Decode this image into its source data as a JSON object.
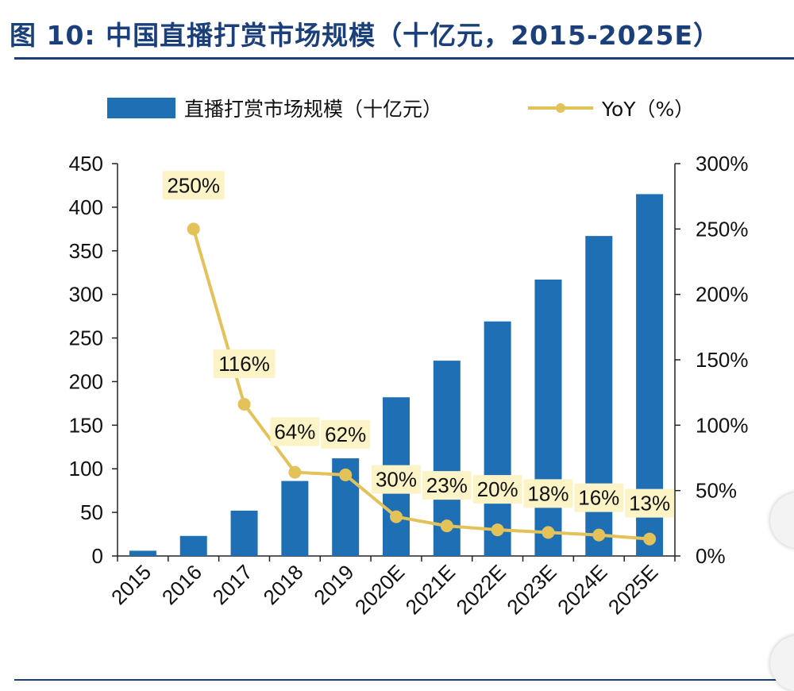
{
  "title": "图  10: 中国直播打赏市场规模（十亿元，2015-2025E）",
  "colors": {
    "bar": "#1f6fb4",
    "line": "#e3c25a",
    "label_bg": "#fcf4c6",
    "title": "#1a3f7a"
  },
  "chart_data": {
    "type": "bar",
    "categories": [
      "2015",
      "2016",
      "2017",
      "2018",
      "2019",
      "2020E",
      "2021E",
      "2022E",
      "2023E",
      "2024E",
      "2025E"
    ],
    "series": [
      {
        "name": "直播打赏市场规模（十亿元）",
        "type": "bar",
        "axis": "left",
        "values": [
          6,
          23,
          52,
          86,
          112,
          182,
          224,
          269,
          317,
          367,
          415
        ]
      },
      {
        "name": "YoY（%）",
        "type": "line",
        "axis": "right",
        "values": [
          null,
          250,
          116,
          64,
          62,
          30,
          23,
          20,
          18,
          16,
          13
        ]
      }
    ],
    "data_labels": [
      "",
      "250%",
      "116%",
      "64%",
      "62%",
      "30%",
      "23%",
      "20%",
      "18%",
      "16%",
      "13%"
    ],
    "y_left": {
      "range": [
        0,
        450
      ],
      "ticks": [
        "0",
        "50",
        "100",
        "150",
        "200",
        "250",
        "300",
        "350",
        "400",
        "450"
      ]
    },
    "y_right": {
      "range": [
        0,
        300
      ],
      "ticks": [
        "0%",
        "50%",
        "100%",
        "150%",
        "200%",
        "250%",
        "300%"
      ]
    },
    "legend_placement": "top",
    "grid": false
  }
}
